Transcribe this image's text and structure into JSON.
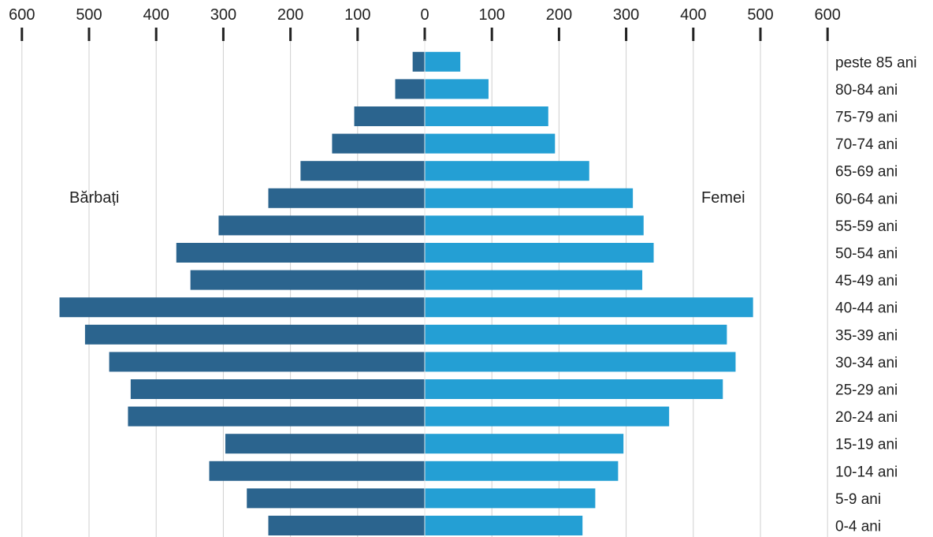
{
  "chart_data": {
    "type": "bar",
    "orientation": "horizontal",
    "layout": "population-pyramid",
    "categories": [
      "peste 85 ani",
      "80-84 ani",
      "75-79 ani",
      "70-74 ani",
      "65-69 ani",
      "60-64 ani",
      "55-59 ani",
      "50-54 ani",
      "45-49 ani",
      "40-44 ani",
      "35-39 ani",
      "30-34 ani",
      "25-29 ani",
      "20-24 ani",
      "15-19 ani",
      "10-14 ani",
      "5-9 ani",
      "0-4 ani"
    ],
    "series": [
      {
        "name": "Bărbați",
        "side": "left",
        "color": "#2b648e",
        "values": [
          18,
          44,
          105,
          138,
          185,
          233,
          307,
          370,
          349,
          544,
          506,
          470,
          438,
          442,
          297,
          321,
          265,
          233
        ]
      },
      {
        "name": "Femei",
        "side": "right",
        "color": "#249fd4",
        "values": [
          53,
          95,
          184,
          194,
          245,
          310,
          326,
          341,
          324,
          489,
          450,
          463,
          444,
          364,
          296,
          288,
          254,
          235
        ]
      }
    ],
    "x_ticks": [
      "600",
      "500",
      "400",
      "300",
      "200",
      "100",
      "0",
      "100",
      "200",
      "300",
      "400",
      "500",
      "600"
    ],
    "xlim": [
      -600,
      600
    ],
    "grid": true,
    "title": "",
    "xlabel": "",
    "ylabel": "",
    "legend": "inline labels left and right"
  }
}
